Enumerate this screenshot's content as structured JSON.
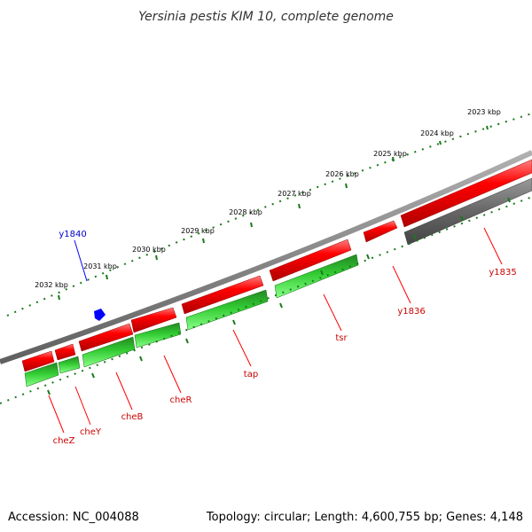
{
  "title": "Yersinia pestis KIM 10, complete genome",
  "footer": {
    "accession": "Accession: NC_004088",
    "summary": "Topology: circular; Length: 4,600,755 bp; Genes: 4,148"
  },
  "scale_ticks": [
    "2023 kbp",
    "2024 kbp",
    "2025 kbp",
    "2026 kbp",
    "2027 kbp",
    "2028 kbp",
    "2029 kbp",
    "2030 kbp",
    "2031 kbp",
    "2032 kbp"
  ],
  "genes": [
    {
      "name": "y1835",
      "strand": "top",
      "color": "#808080",
      "label_color": "#cc0000"
    },
    {
      "name": "y1836",
      "strand": "bottom",
      "color": "#ff0000",
      "label_color": "#cc0000"
    },
    {
      "name": "tsr",
      "strand": "top",
      "color": "#33cc33",
      "label_color": "#cc0000"
    },
    {
      "name": "tap",
      "strand": "top",
      "color": "#33cc33",
      "label_color": "#cc0000"
    },
    {
      "name": "cheR",
      "strand": "top",
      "color": "#33cc33",
      "label_color": "#cc0000"
    },
    {
      "name": "cheB",
      "strand": "top",
      "color": "#33cc33",
      "label_color": "#cc0000"
    },
    {
      "name": "cheY",
      "strand": "top",
      "color": "#33cc33",
      "label_color": "#cc0000"
    },
    {
      "name": "cheZ",
      "strand": "top",
      "color": "#33cc33",
      "label_color": "#cc0000"
    },
    {
      "name": "y1840",
      "strand": "marker",
      "color": "#0000ff",
      "label_color": "#0000cc"
    }
  ],
  "colors": {
    "backbone": "#808080",
    "forward_gene": "#ff0000",
    "reverse_gene": "#33cc33",
    "other_gene": "#666666",
    "scale": "#1a7a1a",
    "marker": "#0000ff"
  }
}
